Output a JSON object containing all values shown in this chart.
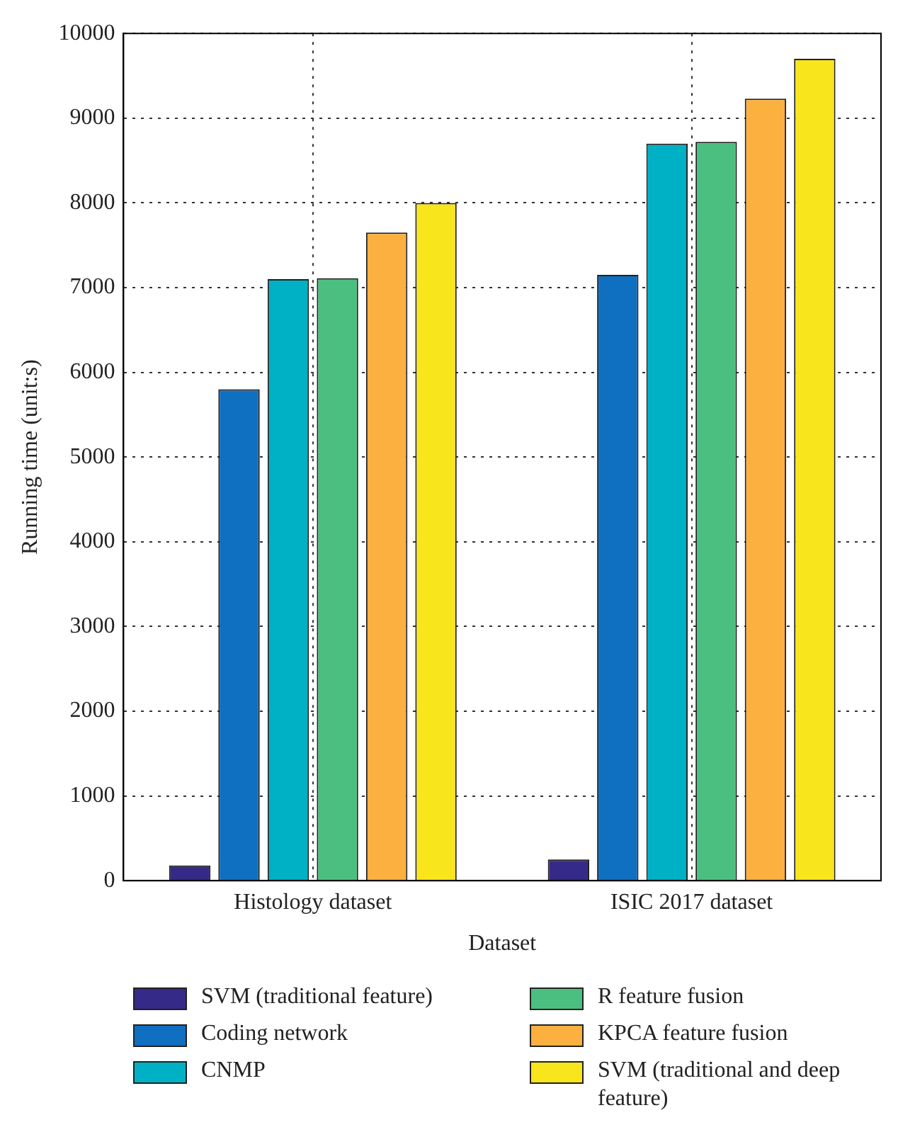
{
  "chart_data": {
    "type": "bar",
    "xlabel": "Dataset",
    "ylabel": "Running time (unit:s)",
    "categories": [
      "Histology dataset",
      "ISIC 2017 dataset"
    ],
    "series": [
      {
        "name": "SVM (traditional feature)",
        "color": "#352a87",
        "values": [
          180,
          250
        ]
      },
      {
        "name": "Coding network",
        "color": "#0f6fc0",
        "values": [
          5800,
          7150
        ]
      },
      {
        "name": "CNMP",
        "color": "#00b0c4",
        "values": [
          7100,
          8700
        ]
      },
      {
        "name": "R feature fusion",
        "color": "#4bbf7f",
        "values": [
          7110,
          8720
        ]
      },
      {
        "name": "KPCA feature fusion",
        "color": "#fbb040",
        "values": [
          7650,
          9230
        ]
      },
      {
        "name": "SVM (traditional and deep feature)",
        "color": "#f9e51b",
        "values": [
          8000,
          9700
        ]
      }
    ],
    "ylim": [
      0,
      10000
    ],
    "yticks": [
      0,
      1000,
      2000,
      3000,
      4000,
      5000,
      6000,
      7000,
      8000,
      9000,
      10000
    ],
    "grid": true,
    "legend": "bottom"
  }
}
